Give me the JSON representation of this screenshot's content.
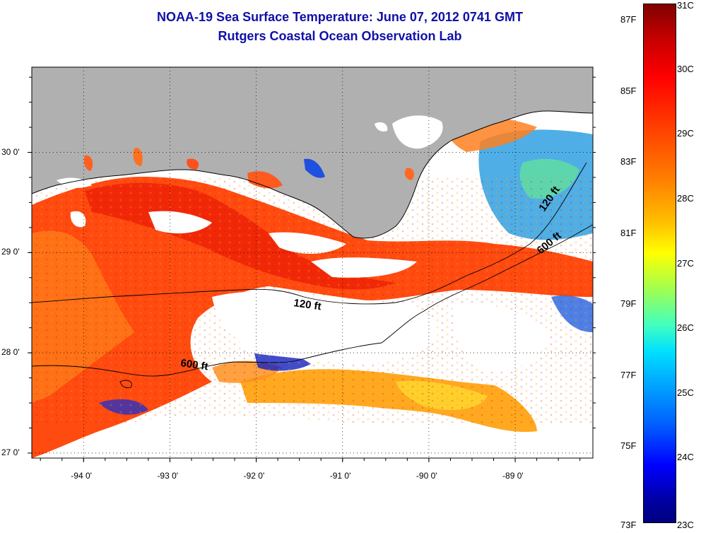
{
  "header": {
    "title_line1": "NOAA-19 Sea Surface Temperature:  June 07, 2012 0741 GMT",
    "title_line2": "Rutgers Coastal Ocean Observation Lab"
  },
  "map": {
    "lat_labels": [
      "30 0'",
      "29 0'",
      "28 0'",
      "27 0'"
    ],
    "lon_labels": [
      "-94 0'",
      "-93 0'",
      "-92 0'",
      "-91 0'",
      "-90 0'",
      "-89 0'"
    ],
    "lat_values": [
      30,
      29,
      28,
      27
    ],
    "lon_values": [
      -94,
      -93,
      -92,
      -91,
      -90,
      -89
    ],
    "lon_range": [
      -94.6,
      -88.1
    ],
    "lat_range": [
      26.95,
      30.85
    ],
    "contour_labels": [
      "120 ft",
      "600 ft",
      "120 ft",
      "600 ft"
    ],
    "land_color": "#b0b0b0",
    "cloud_color": "#ffffff"
  },
  "colorbar": {
    "fahrenheit_labels": [
      "87F",
      "85F",
      "83F",
      "81F",
      "79F",
      "77F",
      "75F",
      "73F"
    ],
    "celsius_labels": [
      "31C",
      "30C",
      "29C",
      "28C",
      "27C",
      "26C",
      "25C",
      "24C",
      "23C"
    ],
    "range_c": [
      23,
      31
    ],
    "colors": [
      "#800000",
      "#ff0000",
      "#ff8000",
      "#ffff00",
      "#40ffc0",
      "#00a0ff",
      "#0000ff",
      "#000080"
    ]
  }
}
